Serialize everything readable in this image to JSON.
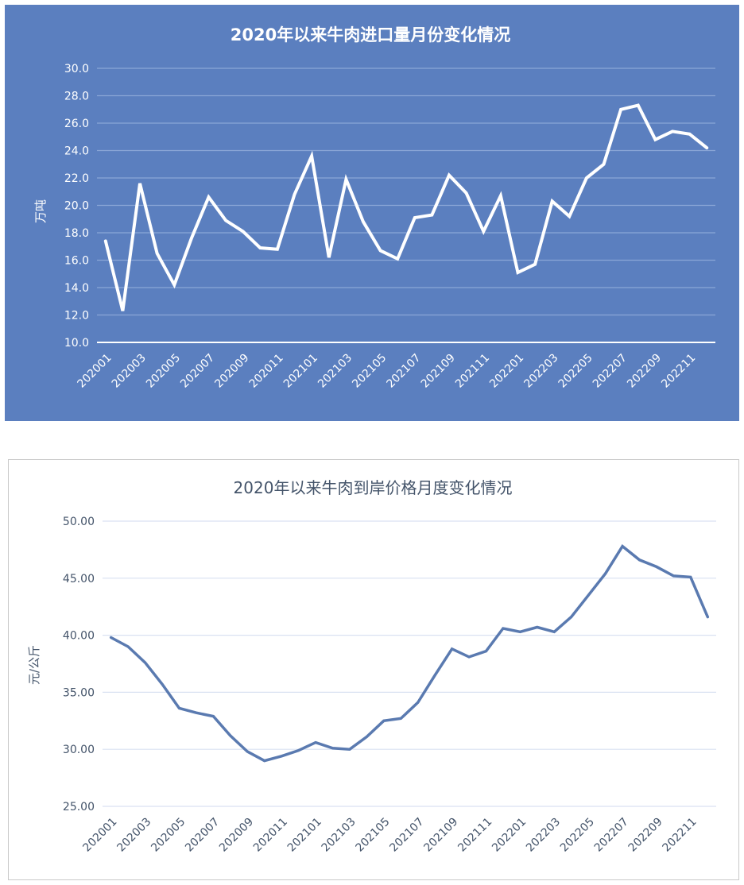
{
  "chart_data": [
    {
      "type": "line",
      "title": "2020年以来牛肉进口量月份变化情况",
      "ylabel": "万吨",
      "ylim": [
        10,
        30
      ],
      "yticks": [
        "10.0",
        "12.0",
        "14.0",
        "16.0",
        "18.0",
        "20.0",
        "22.0",
        "24.0",
        "26.0",
        "28.0",
        "30.0"
      ],
      "x": [
        "202001",
        "202002",
        "202003",
        "202004",
        "202005",
        "202006",
        "202007",
        "202008",
        "202009",
        "202010",
        "202011",
        "202012",
        "202101",
        "202102",
        "202103",
        "202104",
        "202105",
        "202106",
        "202107",
        "202108",
        "202109",
        "202110",
        "202111",
        "202112",
        "202201",
        "202202",
        "202203",
        "202204",
        "202205",
        "202206",
        "202207",
        "202208",
        "202209",
        "202210",
        "202211",
        "202212"
      ],
      "xtick_labels": [
        "202001",
        "202003",
        "202005",
        "202007",
        "202009",
        "202011",
        "202101",
        "202103",
        "202105",
        "202107",
        "202109",
        "202111",
        "202201",
        "202203",
        "202205",
        "202207",
        "202209",
        "202211"
      ],
      "series": [
        {
          "values": [
            17.4,
            12.3,
            21.6,
            16.5,
            14.2,
            17.6,
            20.6,
            18.9,
            18.1,
            16.9,
            16.8,
            20.8,
            23.6,
            16.2,
            21.9,
            18.8,
            16.7,
            16.1,
            19.1,
            19.3,
            22.2,
            20.9,
            18.1,
            20.7,
            15.1,
            15.7,
            20.3,
            19.2,
            22.0,
            23.0,
            27.0,
            27.3,
            24.8,
            25.4,
            25.2,
            24.2
          ]
        }
      ],
      "grid": true,
      "colors": {
        "background": "#5b7fbf",
        "line": "#ffffff",
        "grid": "#8aa6d6",
        "text": "#ffffff"
      }
    },
    {
      "type": "line",
      "title": "2020年以来牛肉到岸价格月度变化情况",
      "ylabel": "元/公斤",
      "ylim": [
        25,
        50
      ],
      "yticks": [
        "25.00",
        "30.00",
        "35.00",
        "40.00",
        "45.00",
        "50.00"
      ],
      "x": [
        "202001",
        "202002",
        "202003",
        "202004",
        "202005",
        "202006",
        "202007",
        "202008",
        "202009",
        "202010",
        "202011",
        "202012",
        "202101",
        "202102",
        "202103",
        "202104",
        "202105",
        "202106",
        "202107",
        "202108",
        "202109",
        "202110",
        "202111",
        "202112",
        "202201",
        "202202",
        "202203",
        "202204",
        "202205",
        "202206",
        "202207",
        "202208",
        "202209",
        "202210",
        "202211",
        "202212"
      ],
      "xtick_labels": [
        "202001",
        "202003",
        "202005",
        "202007",
        "202009",
        "202011",
        "202101",
        "202103",
        "202105",
        "202107",
        "202109",
        "202111",
        "202201",
        "202203",
        "202205",
        "202207",
        "202209",
        "202211"
      ],
      "series": [
        {
          "values": [
            39.8,
            39.0,
            37.6,
            35.7,
            33.6,
            33.2,
            32.9,
            31.2,
            29.8,
            29.0,
            29.4,
            29.9,
            30.6,
            30.1,
            30.0,
            31.1,
            32.5,
            32.7,
            34.1,
            36.5,
            38.8,
            38.1,
            38.6,
            40.6,
            40.3,
            40.7,
            40.3,
            41.6,
            43.5,
            45.4,
            47.8,
            46.6,
            46.0,
            45.2,
            45.1,
            41.6
          ]
        }
      ],
      "grid": true,
      "colors": {
        "background": "#ffffff",
        "line": "#5a7ab0",
        "grid": "#d9e1f2",
        "text": "#44546a"
      }
    }
  ]
}
